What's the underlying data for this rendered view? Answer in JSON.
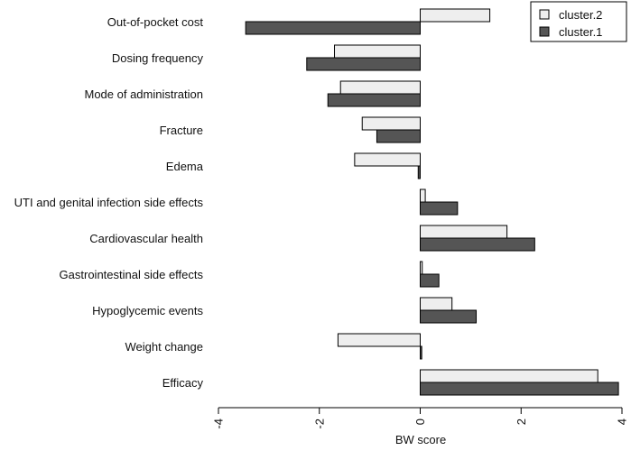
{
  "chart_data": {
    "type": "bar",
    "orientation": "horizontal",
    "title": "",
    "xlabel": "BW score",
    "ylabel": "",
    "xlim": [
      -4,
      4
    ],
    "xticks": [
      "-4",
      "-2",
      "0",
      "2",
      "4"
    ],
    "categories": [
      "Out-of-pocket cost",
      "Dosing frequency",
      "Mode of administration",
      "Fracture",
      "Edema",
      "UTI and genital infection side effects",
      "Cardiovascular health",
      "Gastrointestinal side effects",
      "Hypoglycemic events",
      "Weight change",
      "Efficacy"
    ],
    "series": [
      {
        "name": "cluster.2",
        "color": "#eeeeee",
        "values": [
          1.38,
          -1.7,
          -1.58,
          -1.15,
          -1.3,
          0.1,
          1.72,
          0.04,
          0.63,
          -1.63,
          3.52
        ]
      },
      {
        "name": "cluster.1",
        "color": "#555555",
        "values": [
          -3.46,
          -2.25,
          -1.83,
          -0.86,
          -0.04,
          0.74,
          2.27,
          0.37,
          1.11,
          0.03,
          3.93
        ]
      }
    ],
    "legend": {
      "position": "top-right",
      "entries": [
        "cluster.2",
        "cluster.1"
      ]
    }
  }
}
